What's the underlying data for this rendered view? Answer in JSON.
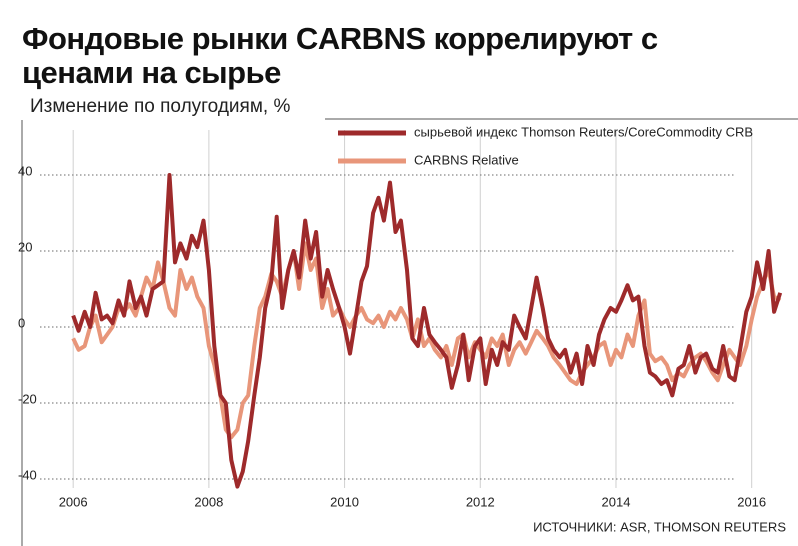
{
  "chart_data": {
    "type": "line",
    "title": "Фондовые рынки CARBNS коррелируют с ценами на сырье",
    "subtitle": "Изменение по полугодиям, %",
    "source": "ИСТОЧНИКИ:  ASR, THOMSON REUTERS",
    "x": [
      2006.0,
      2006.08,
      2006.17,
      2006.25,
      2006.33,
      2006.42,
      2006.5,
      2006.58,
      2006.67,
      2006.75,
      2006.83,
      2006.92,
      2007.0,
      2007.08,
      2007.17,
      2007.25,
      2007.33,
      2007.42,
      2007.5,
      2007.58,
      2007.67,
      2007.75,
      2007.83,
      2007.92,
      2008.0,
      2008.08,
      2008.17,
      2008.25,
      2008.33,
      2008.42,
      2008.5,
      2008.58,
      2008.67,
      2008.75,
      2008.83,
      2008.92,
      2009.0,
      2009.08,
      2009.17,
      2009.25,
      2009.33,
      2009.42,
      2009.5,
      2009.58,
      2009.67,
      2009.75,
      2009.83,
      2009.92,
      2010.0,
      2010.08,
      2010.17,
      2010.25,
      2010.33,
      2010.42,
      2010.5,
      2010.58,
      2010.67,
      2010.75,
      2010.83,
      2010.92,
      2011.0,
      2011.08,
      2011.17,
      2011.25,
      2011.33,
      2011.42,
      2011.5,
      2011.58,
      2011.67,
      2011.75,
      2011.83,
      2011.92,
      2012.0,
      2012.08,
      2012.17,
      2012.25,
      2012.33,
      2012.42,
      2012.5,
      2012.58,
      2012.67,
      2012.75,
      2012.83,
      2012.92,
      2013.0,
      2013.08,
      2013.17,
      2013.25,
      2013.33,
      2013.42,
      2013.5,
      2013.58,
      2013.67,
      2013.75,
      2013.83,
      2013.92,
      2014.0,
      2014.08,
      2014.17,
      2014.25,
      2014.33,
      2014.42,
      2014.5,
      2014.58,
      2014.67,
      2014.75,
      2014.83,
      2014.92,
      2015.0,
      2015.08,
      2015.17,
      2015.25,
      2015.33,
      2015.42,
      2015.5,
      2015.58,
      2015.67,
      2015.75,
      2015.83,
      2015.92,
      2016.0,
      2016.08,
      2016.17,
      2016.25,
      2016.33,
      2016.42
    ],
    "series": [
      {
        "name": "сырьевой индекс Thomson Reuters/CoreCommodity CRB",
        "color": "#9e2a2b",
        "values": [
          3,
          -1,
          4,
          0,
          9,
          2,
          3,
          1,
          7,
          3,
          12,
          5,
          8,
          3,
          10,
          11,
          12,
          40,
          17,
          22,
          18,
          24,
          21,
          28,
          15,
          -5,
          -18,
          -20,
          -35,
          -42,
          -38,
          -30,
          -18,
          -8,
          5,
          12,
          29,
          5,
          15,
          20,
          13,
          28,
          18,
          25,
          8,
          15,
          10,
          5,
          0,
          -7,
          3,
          12,
          16,
          30,
          34,
          28,
          38,
          25,
          28,
          15,
          -3,
          -5,
          5,
          -2,
          -4,
          -6,
          -8,
          -16,
          -10,
          -2,
          -14,
          -5,
          -3,
          -15,
          -6,
          -10,
          -4,
          -6,
          3,
          0,
          -3,
          5,
          13,
          5,
          -3,
          -6,
          -8,
          -6,
          -12,
          -7,
          -15,
          -5,
          -10,
          -2,
          2,
          5,
          4,
          7,
          11,
          7,
          8,
          -5,
          -12,
          -13,
          -15,
          -14,
          -18,
          -11,
          -10,
          -5,
          -12,
          -8,
          -7,
          -11,
          -12,
          -5,
          -13,
          -14,
          -6,
          4,
          8,
          17,
          10,
          20,
          4,
          9
        ]
      },
      {
        "name": "CARBNS Relative",
        "color": "#e8967a",
        "values": [
          -3,
          -6,
          -5,
          0,
          3,
          -4,
          -2,
          0,
          5,
          4,
          6,
          3,
          8,
          13,
          10,
          17,
          12,
          5,
          3,
          15,
          10,
          13,
          8,
          5,
          -5,
          -10,
          -18,
          -27,
          -29,
          -27,
          -20,
          -18,
          -5,
          5,
          8,
          14,
          12,
          8,
          15,
          20,
          10,
          22,
          15,
          18,
          5,
          10,
          3,
          5,
          2,
          0,
          3,
          5,
          2,
          1,
          3,
          0,
          4,
          2,
          5,
          2,
          -3,
          2,
          -5,
          -3,
          -6,
          -8,
          -5,
          -10,
          -3,
          -2,
          -8,
          -4,
          -6,
          -8,
          -3,
          -5,
          -2,
          -10,
          -6,
          -4,
          -7,
          -4,
          -1,
          -3,
          -5,
          -8,
          -10,
          -12,
          -14,
          -15,
          -12,
          -10,
          -8,
          -5,
          -4,
          -10,
          -6,
          -8,
          -2,
          -5,
          3,
          7,
          -7,
          -9,
          -8,
          -10,
          -14,
          -12,
          -13,
          -10,
          -8,
          -7,
          -9,
          -12,
          -14,
          -10,
          -6,
          -8,
          -10,
          -5,
          2,
          8,
          12,
          15,
          8,
          7
        ]
      }
    ],
    "xlim": [
      2005.85,
      2016.55
    ],
    "xticks": [
      2006,
      2008,
      2010,
      2012,
      2014,
      2016
    ],
    "ylim": [
      -45,
      45
    ],
    "yticks": [
      -40,
      -20,
      0,
      20,
      40
    ],
    "grid": true
  }
}
